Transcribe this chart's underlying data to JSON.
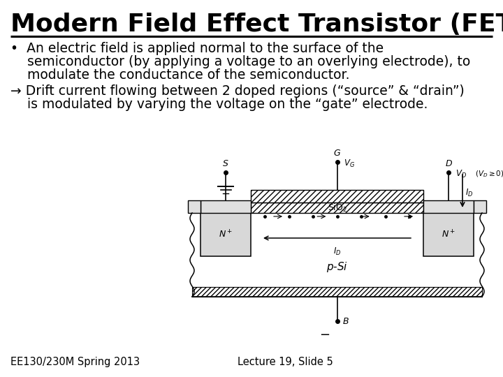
{
  "title": "Modern Field Effect Transistor (FET)",
  "title_fontsize": 26,
  "title_fontweight": "bold",
  "title_color": "#000000",
  "bg_color": "#ffffff",
  "bullet1_line1": "•  An electric field is applied normal to the surface of the",
  "bullet1_line2": "    semiconductor (by applying a voltage to an overlying electrode), to",
  "bullet1_line3": "    modulate the conductance of the semiconductor.",
  "bullet2_line1": "→ Drift current flowing between 2 doped regions (“source” & “drain”)",
  "bullet2_line2": "    is modulated by varying the voltage on the “gate” electrode.",
  "footer_left": "EE130/230M Spring 2013",
  "footer_right": "Lecture 19, Slide 5",
  "text_fontsize": 13.5,
  "footer_fontsize": 10.5
}
